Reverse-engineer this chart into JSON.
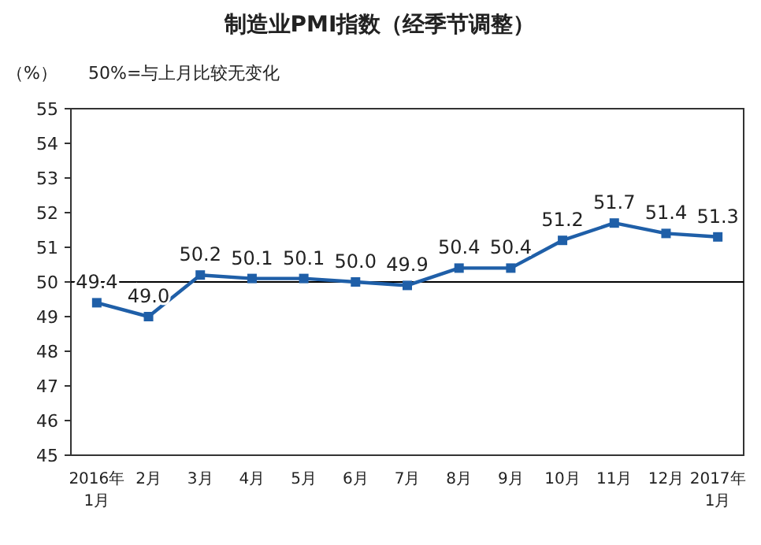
{
  "chart_data": {
    "type": "line",
    "title": "制造业PMI指数（经季节调整）",
    "ylabel": "（%）",
    "annotations": [
      "50%=与上月比较无变化"
    ],
    "categories": [
      "2016年\n1月",
      "2月",
      "3月",
      "4月",
      "5月",
      "6月",
      "7月",
      "8月",
      "9月",
      "10月",
      "11月",
      "12月",
      "2017年\n1月"
    ],
    "series": [
      {
        "color": "#1f5fa8",
        "values": [
          49.4,
          49.0,
          50.2,
          50.1,
          50.1,
          50.0,
          49.9,
          50.4,
          50.4,
          51.2,
          51.7,
          51.4,
          51.3
        ]
      }
    ],
    "ylim": [
      45,
      55
    ],
    "yticks": [
      45,
      46,
      47,
      48,
      49,
      50,
      51,
      52,
      53,
      54,
      55
    ],
    "ref_lines": [
      {
        "axis": "y",
        "value": 50,
        "color": "#000000"
      }
    ],
    "value_labels": [
      "49.4",
      "49.0",
      "50.2",
      "50.1",
      "50.1",
      "50.0",
      "49.9",
      "50.4",
      "50.4",
      "51.2",
      "51.7",
      "51.4",
      "51.3"
    ],
    "marker": "square",
    "grid": false
  }
}
